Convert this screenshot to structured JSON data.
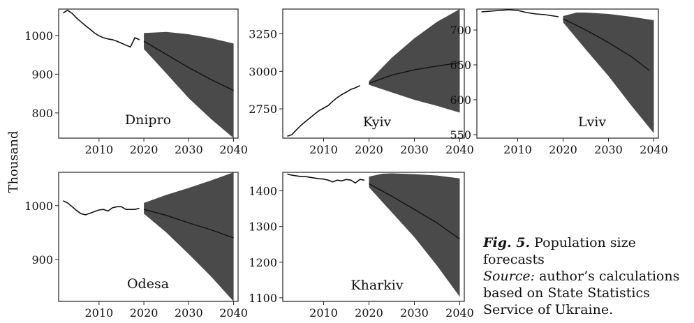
{
  "figure": {
    "ylabel": "Thousand",
    "caption_label": "Fig. 5.",
    "caption_text": "Population size forecasts",
    "source_label": "Source:",
    "source_text": "author’s calculations based on State Statistics Service of Ukraine."
  },
  "colors": {
    "band": "#4a4a4a",
    "line": "#111111",
    "axis": "#222222"
  },
  "chart_data": [
    {
      "type": "line",
      "title": "Dnipro",
      "xlim": [
        2001,
        2041
      ],
      "ylim": [
        735,
        1068
      ],
      "xticks": [
        2010,
        2020,
        2030,
        2040
      ],
      "yticks": [
        800,
        900,
        1000
      ],
      "historical": {
        "x": [
          2002,
          2003,
          2004,
          2005,
          2006,
          2007,
          2008,
          2009,
          2010,
          2011,
          2012,
          2013,
          2014,
          2015,
          2016,
          2017,
          2018,
          2019
        ],
        "y": [
          1058,
          1065,
          1057,
          1045,
          1035,
          1025,
          1016,
          1006,
          999,
          994,
          991,
          989,
          985,
          980,
          975,
          970,
          994,
          989
        ]
      },
      "forecast": {
        "x": [
          2020,
          2025,
          2030,
          2035,
          2040
        ],
        "y": [
          985,
          951,
          917,
          886,
          858
        ]
      },
      "lower": {
        "x": [
          2020,
          2025,
          2030,
          2035,
          2040
        ],
        "y": [
          965,
          902,
          838,
          784,
          735
        ]
      },
      "upper": {
        "x": [
          2020,
          2025,
          2030,
          2035,
          2040
        ],
        "y": [
          1006,
          1009,
          1003,
          993,
          979
        ]
      }
    },
    {
      "type": "line",
      "title": "Kyiv",
      "xlim": [
        2001,
        2041
      ],
      "ylim": [
        2555,
        3415
      ],
      "xticks": [
        2010,
        2020,
        2030,
        2040
      ],
      "yticks": [
        2750,
        3000,
        3250
      ],
      "historical": {
        "x": [
          2002,
          2003,
          2004,
          2005,
          2006,
          2007,
          2008,
          2009,
          2010,
          2011,
          2012,
          2013,
          2014,
          2015,
          2016,
          2017,
          2018
        ],
        "y": [
          2568,
          2578,
          2610,
          2640,
          2665,
          2690,
          2715,
          2738,
          2755,
          2772,
          2800,
          2825,
          2845,
          2862,
          2880,
          2890,
          2905
        ]
      },
      "forecast": {
        "x": [
          2020,
          2025,
          2030,
          2035,
          2040
        ],
        "y": [
          2920,
          2975,
          3010,
          3035,
          3058
        ]
      },
      "lower": {
        "x": [
          2020,
          2025,
          2030,
          2035,
          2040
        ],
        "y": [
          2910,
          2860,
          2810,
          2770,
          2725
        ]
      },
      "upper": {
        "x": [
          2020,
          2025,
          2030,
          2035,
          2040
        ],
        "y": [
          2935,
          3090,
          3220,
          3330,
          3415
        ]
      }
    },
    {
      "type": "line",
      "title": "Lviv",
      "xlim": [
        2001,
        2041
      ],
      "ylim": [
        545,
        730
      ],
      "xticks": [
        2010,
        2020,
        2030,
        2040
      ],
      "yticks": [
        550,
        600,
        650,
        700
      ],
      "historical": {
        "x": [
          2002,
          2004,
          2006,
          2008,
          2010,
          2012,
          2014,
          2016,
          2018,
          2019
        ],
        "y": [
          726,
          727,
          728,
          729,
          728,
          725,
          723,
          722,
          720,
          719
        ]
      },
      "forecast": {
        "x": [
          2020,
          2025,
          2030,
          2035,
          2039
        ],
        "y": [
          716,
          700,
          682,
          662,
          642
        ]
      },
      "lower": {
        "x": [
          2020,
          2025,
          2030,
          2035,
          2040
        ],
        "y": [
          711,
          672,
          634,
          592,
          552
        ]
      },
      "upper": {
        "x": [
          2020,
          2023,
          2025,
          2030,
          2035,
          2040
        ],
        "y": [
          720,
          725,
          725,
          723,
          719,
          714
        ]
      }
    },
    {
      "type": "line",
      "title": "Odesa",
      "xlim": [
        2001,
        2041
      ],
      "ylim": [
        822,
        1062
      ],
      "xticks": [
        2010,
        2020,
        2030,
        2040
      ],
      "yticks": [
        900,
        1000
      ],
      "historical": {
        "x": [
          2002,
          2003,
          2004,
          2005,
          2006,
          2007,
          2008,
          2009,
          2010,
          2011,
          2012,
          2013,
          2014,
          2015,
          2016,
          2017,
          2018,
          2019
        ],
        "y": [
          1009,
          1005,
          998,
          991,
          985,
          983,
          986,
          989,
          992,
          993,
          990,
          996,
          998,
          998,
          993,
          993,
          993,
          995
        ]
      },
      "forecast": {
        "x": [
          2020,
          2025,
          2030,
          2035,
          2040
        ],
        "y": [
          993,
          982,
          968,
          955,
          940
        ]
      },
      "lower": {
        "x": [
          2020,
          2025,
          2030,
          2035,
          2040
        ],
        "y": [
          985,
          950,
          910,
          868,
          822
        ]
      },
      "upper": {
        "x": [
          2020,
          2025,
          2030,
          2035,
          2040
        ],
        "y": [
          1005,
          1020,
          1033,
          1047,
          1062
        ]
      }
    },
    {
      "type": "line",
      "title": "Kharkiv",
      "xlim": [
        2001,
        2041
      ],
      "ylim": [
        1090,
        1452
      ],
      "xticks": [
        2010,
        2020,
        2030,
        2040
      ],
      "yticks": [
        1100,
        1200,
        1300,
        1400
      ],
      "historical": {
        "x": [
          2002,
          2003,
          2004,
          2005,
          2006,
          2007,
          2008,
          2009,
          2010,
          2011,
          2012,
          2013,
          2014,
          2015,
          2016,
          2017,
          2018,
          2019
        ],
        "y": [
          1447,
          1444,
          1442,
          1440,
          1440,
          1438,
          1436,
          1434,
          1433,
          1430,
          1425,
          1430,
          1428,
          1432,
          1430,
          1422,
          1432,
          1430
        ]
      },
      "forecast": {
        "x": [
          2020,
          2025,
          2030,
          2035,
          2040
        ],
        "y": [
          1420,
          1385,
          1348,
          1310,
          1265
        ]
      },
      "lower": {
        "x": [
          2020,
          2025,
          2030,
          2035,
          2040
        ],
        "y": [
          1410,
          1340,
          1270,
          1190,
          1103
        ]
      },
      "upper": {
        "x": [
          2020,
          2023,
          2025,
          2030,
          2035,
          2040
        ],
        "y": [
          1440,
          1448,
          1449,
          1447,
          1443,
          1435
        ]
      }
    }
  ]
}
